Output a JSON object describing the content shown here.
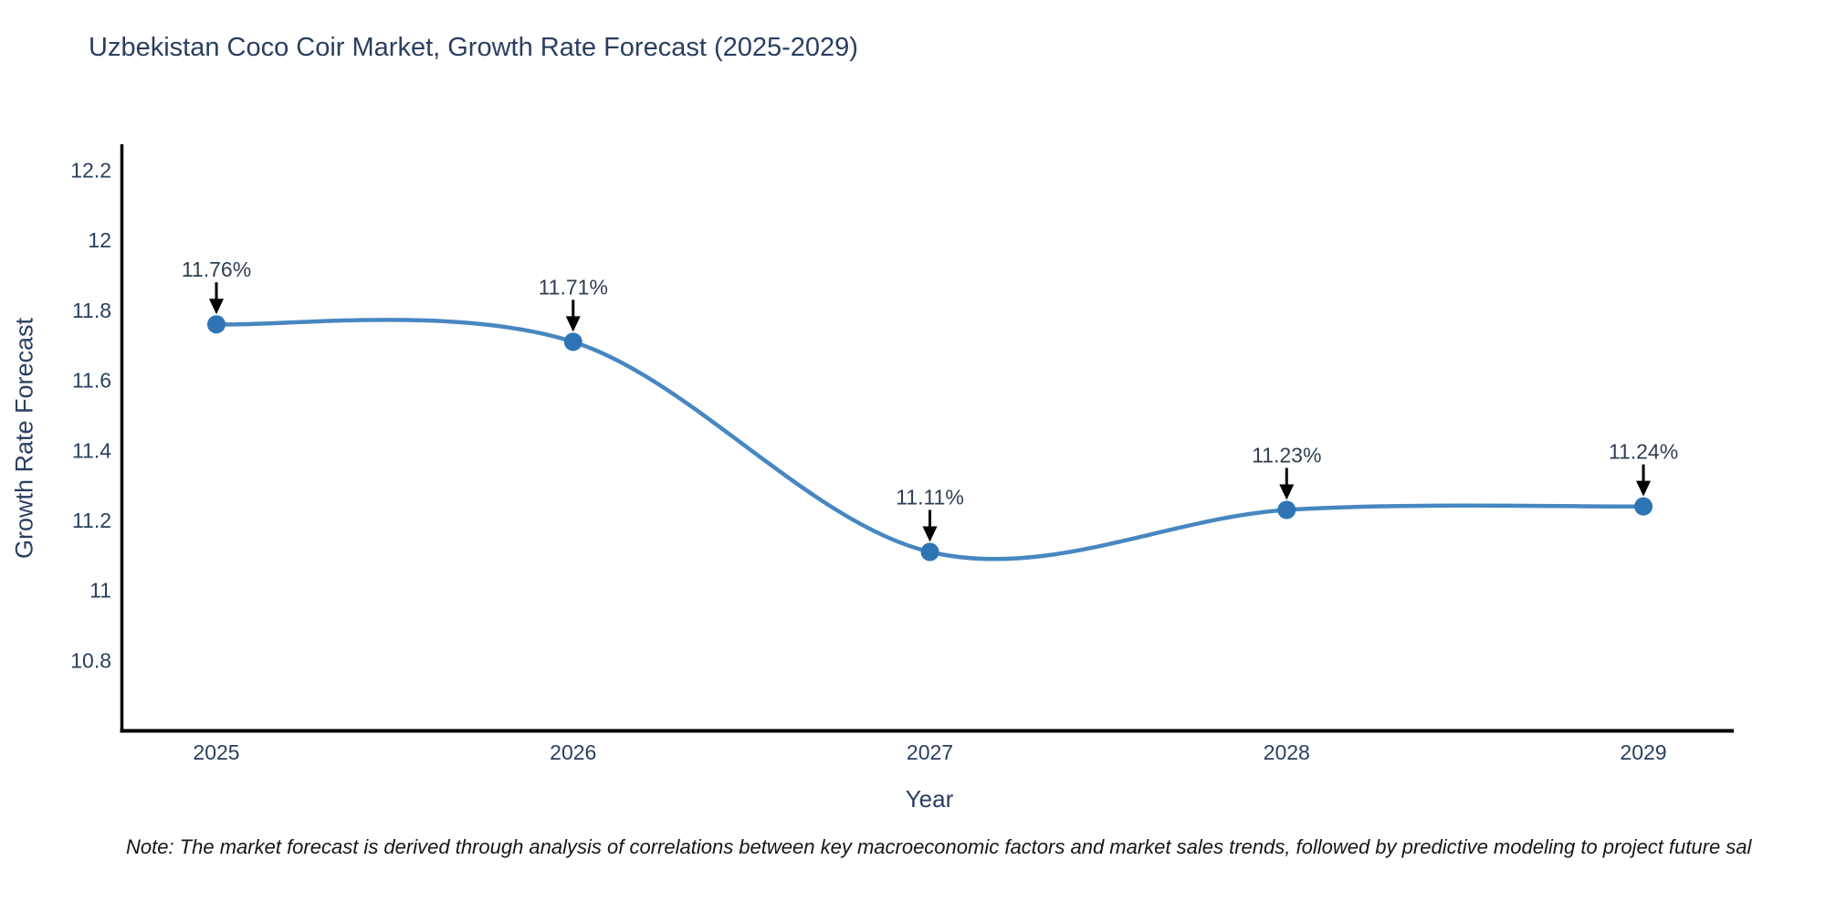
{
  "chart": {
    "title": "Uzbekistan Coco Coir Market, Growth Rate Forecast (2025-2029)",
    "xlabel": "Year",
    "ylabel": "Growth Rate Forecast"
  },
  "note": {
    "text": "Note: The market forecast is derived through analysis of correlations between key macroeconomic factors and market sales trends, followed by predictive modeling to project future sal"
  },
  "chart_data": {
    "type": "line",
    "line_shape": "spline",
    "title": "Uzbekistan Coco Coir Market, Growth Rate Forecast (2025-2029)",
    "xlabel": "Year",
    "ylabel": "Growth Rate Forecast",
    "x": [
      2025,
      2026,
      2027,
      2028,
      2029
    ],
    "series": [
      {
        "name": "Growth Rate Forecast",
        "values": [
          11.76,
          11.71,
          11.11,
          11.23,
          11.24
        ]
      }
    ],
    "point_labels": [
      "11.76%",
      "11.71%",
      "11.11%",
      "11.23%",
      "11.24%"
    ],
    "x_ticks": [
      "2025",
      "2026",
      "2027",
      "2028",
      "2029"
    ],
    "y_ticks": [
      12.2,
      12,
      11.8,
      11.6,
      11.4,
      11.2,
      11,
      10.8
    ],
    "xlim": [
      2024.73,
      2029.28
    ],
    "ylim": [
      10.6,
      12.27
    ],
    "grid": false,
    "legend": "none",
    "colors": {
      "line": "#4787c1",
      "marker": "#2e74b5",
      "arrow": "#000000",
      "axis_line": "#000000",
      "tick_text": "#2a3f5f",
      "annotation_text": "#2f3e52"
    }
  }
}
